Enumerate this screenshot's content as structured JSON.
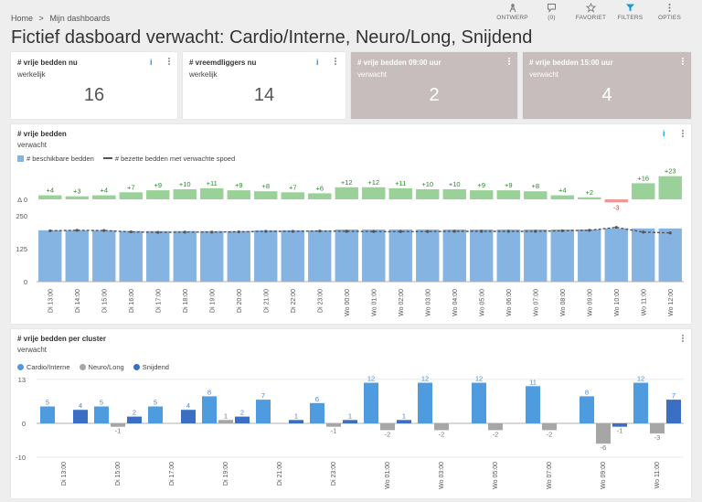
{
  "breadcrumb": {
    "home": "Home",
    "sep": ">",
    "current": "Mijn dashboards"
  },
  "toolbar": [
    {
      "label": "ONTWERP",
      "icon": "compass-icon"
    },
    {
      "label": "(0)",
      "icon": "comment-icon"
    },
    {
      "label": "FAVORIET",
      "icon": "star-icon"
    },
    {
      "label": "FILTERS",
      "icon": "filter-icon"
    },
    {
      "label": "OPTIES",
      "icon": "more-icon"
    }
  ],
  "page_title": "Fictief dasboard verwacht: Cardio/Interne, Neuro/Long, Snijdend",
  "kpis": [
    {
      "title": "# vrije bedden nu",
      "sub": "werkelijk",
      "value": "16"
    },
    {
      "title": "# vreemdliggers nu",
      "sub": "werkelijk",
      "value": "14"
    },
    {
      "title": "# vrije bedden 09:00 uur",
      "sub": "verwacht",
      "value": "2"
    },
    {
      "title": "# vrije bedden 15:00 uur",
      "sub": "verwacht",
      "value": "4"
    }
  ],
  "info_glyph": "i",
  "colors": {
    "accent": "#1a9ad6",
    "bar": "#86b4e2",
    "delta_pos": "#99d199",
    "delta_neg": "#f09797",
    "cardio": "#4f9be0",
    "neuro": "#a6a6a6",
    "snijdend": "#3a6fc4"
  },
  "chart_data": [
    {
      "type": "bar",
      "title": "# vrije bedden",
      "subtitle": "verwacht",
      "legend": [
        "# beschikbare bedden",
        "# bezette bedden met verwachte spoed"
      ],
      "delta_label": "Δ 0",
      "categories": [
        "Di 13:00",
        "Di 14:00",
        "Di 15:00",
        "Di 16:00",
        "Di 17:00",
        "Di 18:00",
        "Di 19:00",
        "Di 20:00",
        "Di 21:00",
        "Di 22:00",
        "Di 23:00",
        "Wo 00:00",
        "Wo 01:00",
        "Wo 02:00",
        "Wo 03:00",
        "Wo 04:00",
        "Wo 05:00",
        "Wo 06:00",
        "Wo 07:00",
        "Wo 08:00",
        "Wo 09:00",
        "Wo 10:00",
        "Wo 11:00",
        "Wo 12:00"
      ],
      "deltas": [
        4,
        3,
        4,
        7,
        9,
        10,
        11,
        9,
        8,
        7,
        6,
        12,
        12,
        11,
        10,
        10,
        9,
        9,
        8,
        4,
        2,
        -3,
        16,
        23
      ],
      "available": [
        195,
        195,
        195,
        192,
        192,
        192,
        192,
        192,
        195,
        195,
        195,
        198,
        198,
        198,
        198,
        198,
        198,
        198,
        198,
        198,
        198,
        202,
        202,
        202
      ],
      "occupied": [
        193,
        195,
        194,
        189,
        187,
        188,
        188,
        189,
        191,
        191,
        192,
        191,
        190,
        190,
        190,
        191,
        191,
        191,
        191,
        193,
        195,
        206,
        188,
        185
      ],
      "yticks": [
        0,
        125,
        250
      ],
      "ylim": [
        0,
        250
      ]
    },
    {
      "type": "bar",
      "title": "# vrije bedden per cluster",
      "subtitle": "verwacht",
      "legend": [
        "Cardio/Interne",
        "Neuro/Long",
        "Snijdend"
      ],
      "categories": [
        "Di 13:00",
        "Di 15:00",
        "Di 17:00",
        "Di 19:00",
        "Di 21:00",
        "Di 23:00",
        "Wo 01:00",
        "Wo 03:00",
        "Wo 05:00",
        "Wo 07:00",
        "Wo 09:00",
        "Wo 11:00"
      ],
      "series": [
        {
          "name": "Cardio/Interne",
          "values": [
            5,
            5,
            5,
            8,
            7,
            6,
            12,
            12,
            12,
            11,
            8,
            12
          ]
        },
        {
          "name": "Neuro/Long",
          "values": [
            0,
            -1,
            0,
            1,
            0,
            -1,
            -2,
            -2,
            -2,
            -2,
            -6,
            -3
          ]
        },
        {
          "name": "Snijdend",
          "values": [
            4,
            2,
            4,
            2,
            1,
            1,
            1,
            0,
            0,
            0,
            -1,
            7
          ]
        }
      ],
      "yticks": [
        -10,
        0,
        13
      ],
      "ylim": [
        -10,
        13
      ]
    }
  ]
}
